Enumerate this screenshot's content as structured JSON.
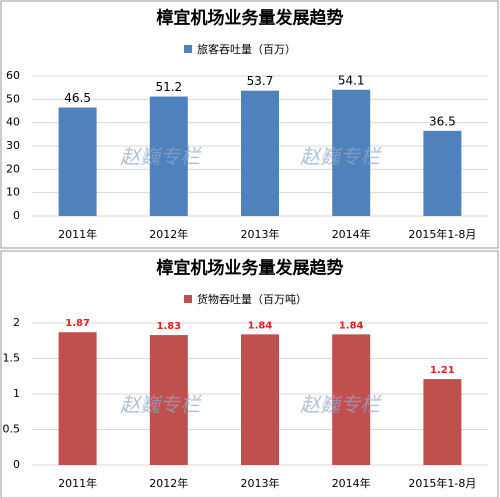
{
  "chart_data": [
    {
      "type": "bar",
      "title": "樟宜机场业务量发展趋势",
      "legend": "旅客吞吐量（百万）",
      "categories": [
        "2011年",
        "2012年",
        "2013年",
        "2014年",
        "2015年1-8月"
      ],
      "values": [
        46.5,
        51.2,
        53.7,
        54.1,
        36.5
      ],
      "color": "#4f81bd",
      "label_color": "#000000",
      "ylim": [
        0,
        60
      ],
      "yticks": [
        0,
        10,
        20,
        30,
        40,
        50,
        60
      ],
      "grid": true,
      "annotations": [
        "赵巍专栏",
        "赵巍专栏"
      ]
    },
    {
      "type": "bar",
      "title": "樟宜机场业务量发展趋势",
      "legend": "货物吞吐量（百万吨）",
      "categories": [
        "2011年",
        "2012年",
        "2013年",
        "2014年",
        "2015年1-8月"
      ],
      "values": [
        1.87,
        1.83,
        1.84,
        1.84,
        1.21
      ],
      "color": "#c0504d",
      "label_color": "#e02020",
      "ylim": [
        0,
        2
      ],
      "yticks": [
        0,
        0.5,
        1,
        1.5,
        2
      ],
      "grid": true,
      "annotations": [
        "赵巍专栏",
        "赵巍专栏"
      ]
    }
  ]
}
